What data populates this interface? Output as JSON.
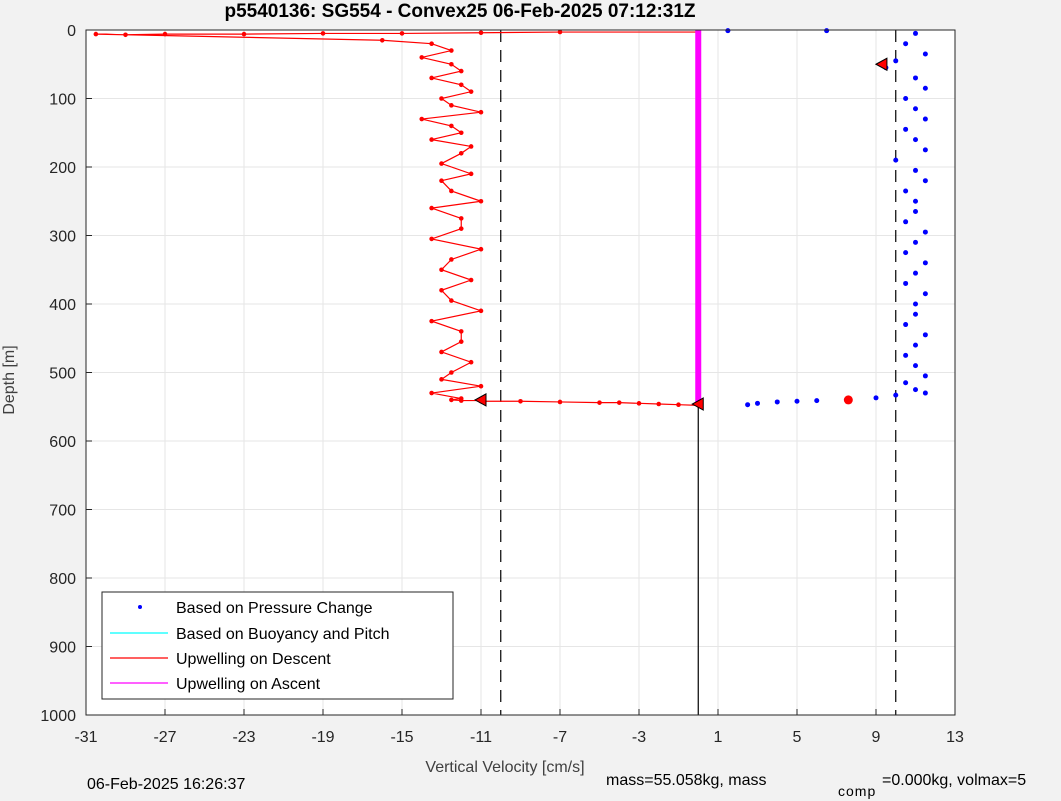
{
  "chart_data": {
    "type": "scatter",
    "title": "p5540136: SG554 - Convex25 06-Feb-2025 07:12:31Z",
    "xlabel": "Vertical Velocity [cm/s]",
    "ylabel": "Depth [m]",
    "xlim": [
      -31,
      13
    ],
    "ylim": [
      0,
      1000
    ],
    "y_reversed": true,
    "grid": true,
    "xticks": [
      -31,
      -27,
      -23,
      -19,
      -15,
      -11,
      -7,
      -3,
      1,
      5,
      9,
      13
    ],
    "yticks": [
      0,
      100,
      200,
      300,
      400,
      500,
      600,
      700,
      800,
      900,
      1000
    ],
    "legend_position": "bottom-left",
    "legend": [
      {
        "label": "Based on Pressure Change",
        "color": "#0000ff",
        "style": "dot"
      },
      {
        "label": "Based on Buoyancy and Pitch",
        "color": "#00ffff",
        "style": "line"
      },
      {
        "label": "Upwelling on Descent",
        "color": "#ff0000",
        "style": "line"
      },
      {
        "label": "Upwelling on Ascent",
        "color": "#ff00ff",
        "style": "line"
      }
    ],
    "reference_lines": [
      {
        "x": -10,
        "style": "dashed",
        "color": "#000000"
      },
      {
        "x": 10,
        "style": "dashed",
        "color": "#000000"
      },
      {
        "x": 0,
        "y_from": 548,
        "y_to": 1000,
        "style": "solid",
        "color": "#000000"
      }
    ],
    "series": [
      {
        "name": "Upwelling on Descent",
        "color": "#ff0000",
        "x": [
          0,
          -7,
          -11,
          -15,
          -19,
          -23,
          -27,
          -29,
          -30.5,
          -16,
          -13.5,
          -12.5,
          -14,
          -12.5,
          -12,
          -13.5,
          -12,
          -11.5,
          -13,
          -12.5,
          -11,
          -14,
          -12.5,
          -12,
          -13.5,
          -11.5,
          -12,
          -13,
          -11.5,
          -13,
          -12.5,
          -11,
          -13.5,
          -12,
          -12,
          -13.5,
          -11,
          -12.5,
          -13,
          -11.5,
          -13,
          -12.5,
          -11,
          -13.5,
          -12,
          -12,
          -13,
          -11.5,
          -12.5,
          -13,
          -11,
          -13.5,
          -12,
          -12.5,
          -12,
          -11,
          -11,
          -9,
          -7,
          -5,
          -4,
          -3,
          -2,
          -1,
          0
        ],
        "y": [
          3,
          3,
          4,
          5,
          5,
          6,
          6,
          7,
          6,
          15,
          20,
          30,
          40,
          50,
          60,
          70,
          80,
          90,
          100,
          110,
          120,
          130,
          140,
          150,
          160,
          170,
          180,
          195,
          210,
          220,
          235,
          250,
          260,
          275,
          290,
          305,
          320,
          335,
          350,
          365,
          380,
          395,
          410,
          425,
          440,
          455,
          470,
          485,
          500,
          510,
          520,
          530,
          538,
          540,
          541,
          541,
          542,
          542,
          543,
          544,
          544,
          545,
          546,
          547,
          548
        ]
      },
      {
        "name": "Upwelling on Ascent",
        "color": "#ff00ff",
        "x": [
          0,
          0,
          0,
          0,
          0,
          0,
          0,
          0,
          0,
          0,
          0,
          0
        ],
        "y": [
          0,
          50,
          100,
          150,
          200,
          250,
          300,
          350,
          400,
          450,
          500,
          548
        ]
      },
      {
        "name": "Based on Pressure Change",
        "color": "#0000ff",
        "x": [
          1.5,
          6.5,
          11,
          10.5,
          11.5,
          10,
          9.5,
          11,
          11.5,
          10.5,
          11,
          11.5,
          10.5,
          11,
          11.5,
          10,
          11,
          11.5,
          10.5,
          11,
          11,
          10.5,
          11.5,
          11,
          10.5,
          11.5,
          11,
          10.5,
          11.5,
          11,
          11,
          10.5,
          11.5,
          11,
          10.5,
          11,
          11.5,
          10.5,
          11,
          11.5,
          10,
          9,
          7.5,
          6,
          5,
          4,
          3,
          2.5
        ],
        "y": [
          1,
          1,
          5,
          20,
          35,
          45,
          55,
          70,
          85,
          100,
          115,
          130,
          145,
          160,
          175,
          190,
          205,
          220,
          235,
          250,
          265,
          280,
          295,
          310,
          325,
          340,
          355,
          370,
          385,
          400,
          415,
          430,
          445,
          460,
          475,
          490,
          505,
          515,
          525,
          530,
          533,
          537,
          540,
          541,
          542,
          543,
          545,
          547
        ]
      }
    ],
    "markers": [
      {
        "x": 9.3,
        "y": 50,
        "shape": "triangle",
        "color": "#ff0000"
      },
      {
        "x": 7.6,
        "y": 540,
        "shape": "circle",
        "color": "#ff0000"
      },
      {
        "x": 0,
        "y": 546,
        "shape": "triangle",
        "color": "#ff0000"
      },
      {
        "x": -11,
        "y": 540,
        "shape": "triangle",
        "color": "#ff0000"
      }
    ]
  },
  "footer": {
    "timestamp": "06-Feb-2025 16:26:37",
    "mass_text": "mass=55.058kg, mass",
    "comp_sub": "comp",
    "comp_text": "=0.000kg, volmax=5"
  }
}
